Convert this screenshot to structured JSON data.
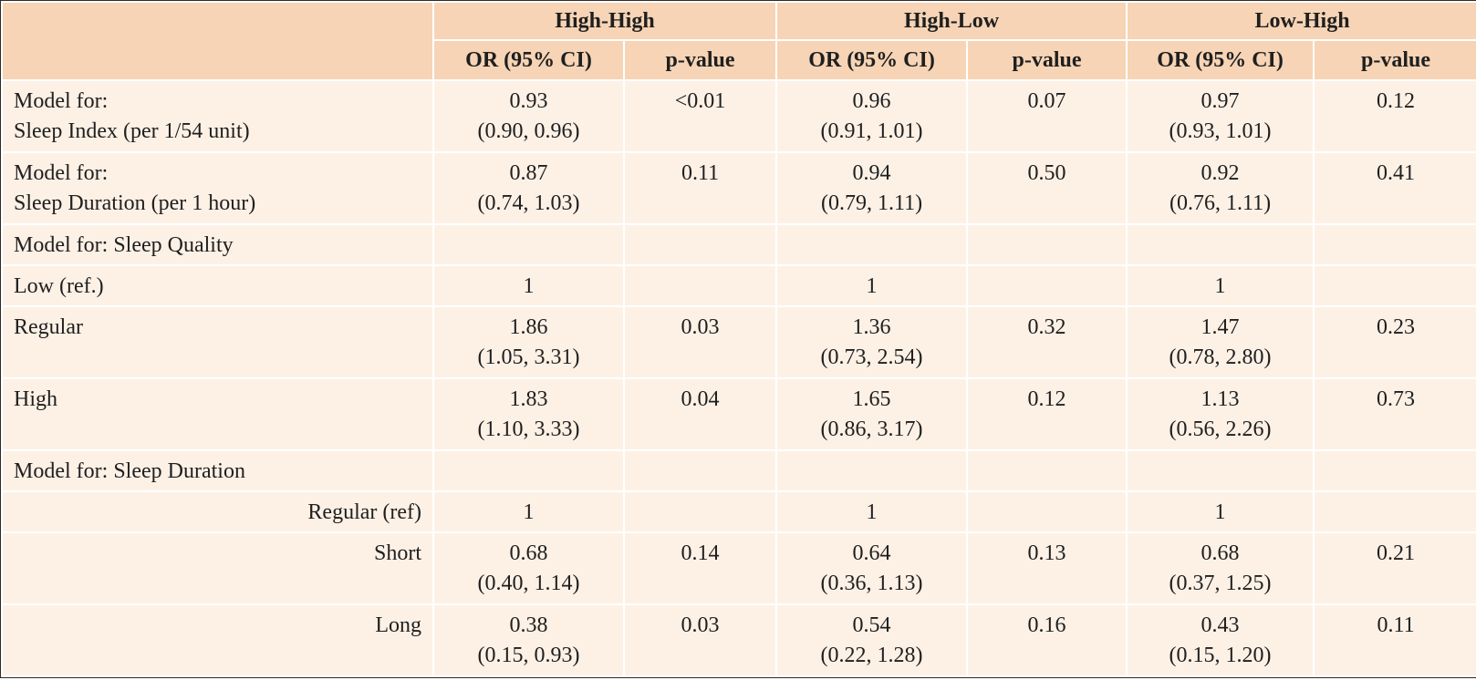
{
  "header": {
    "groups": [
      "High-High",
      "High-Low",
      "Low-High"
    ],
    "sub": [
      "OR (95% CI)",
      "p-value"
    ]
  },
  "rows": [
    {
      "label1": "Model for:",
      "label2": "Sleep Index (per 1/54 unit)",
      "or": [
        "0.93",
        "0.96",
        "0.97"
      ],
      "ci": [
        "(0.90, 0.96)",
        "(0.91, 1.01)",
        "(0.93, 1.01)"
      ],
      "p": [
        "<0.01",
        "0.07",
        "0.12"
      ]
    },
    {
      "label1": "Model for:",
      "label2": "Sleep Duration (per 1 hour)",
      "or": [
        "0.87",
        "0.94",
        "0.92"
      ],
      "ci": [
        "(0.74, 1.03)",
        "(0.79, 1.11)",
        "(0.76, 1.11)"
      ],
      "p": [
        "0.11",
        "0.50",
        "0.41"
      ]
    },
    {
      "label1": "Model for: Sleep Quality"
    },
    {
      "label1": "Low (ref.)",
      "or": [
        "1",
        "1",
        "1"
      ]
    },
    {
      "label1": "Regular",
      "or": [
        "1.86",
        "1.36",
        "1.47"
      ],
      "ci": [
        "(1.05, 3.31)",
        "(0.73, 2.54)",
        "(0.78, 2.80)"
      ],
      "p": [
        "0.03",
        "0.32",
        "0.23"
      ]
    },
    {
      "label1": "High",
      "or": [
        "1.83",
        "1.65",
        "1.13"
      ],
      "ci": [
        "(1.10, 3.33)",
        "(0.86, 3.17)",
        "(0.56, 2.26)"
      ],
      "p": [
        "0.04",
        "0.12",
        "0.73"
      ]
    },
    {
      "label1": "Model for: Sleep Duration"
    },
    {
      "label1": "Regular (ref)",
      "or": [
        "1",
        "1",
        "1"
      ]
    },
    {
      "label1": "Short",
      "or": [
        "0.68",
        "0.64",
        "0.68"
      ],
      "ci": [
        "(0.40, 1.14)",
        "(0.36, 1.13)",
        "(0.37, 1.25)"
      ],
      "p": [
        "0.14",
        "0.13",
        "0.21"
      ]
    },
    {
      "label1": "Long",
      "or": [
        "0.38",
        "0.54",
        "0.43"
      ],
      "ci": [
        "(0.15, 0.93)",
        "(0.22, 1.28)",
        "(0.15, 1.20)"
      ],
      "p": [
        "0.03",
        "0.16",
        "0.11"
      ]
    }
  ]
}
